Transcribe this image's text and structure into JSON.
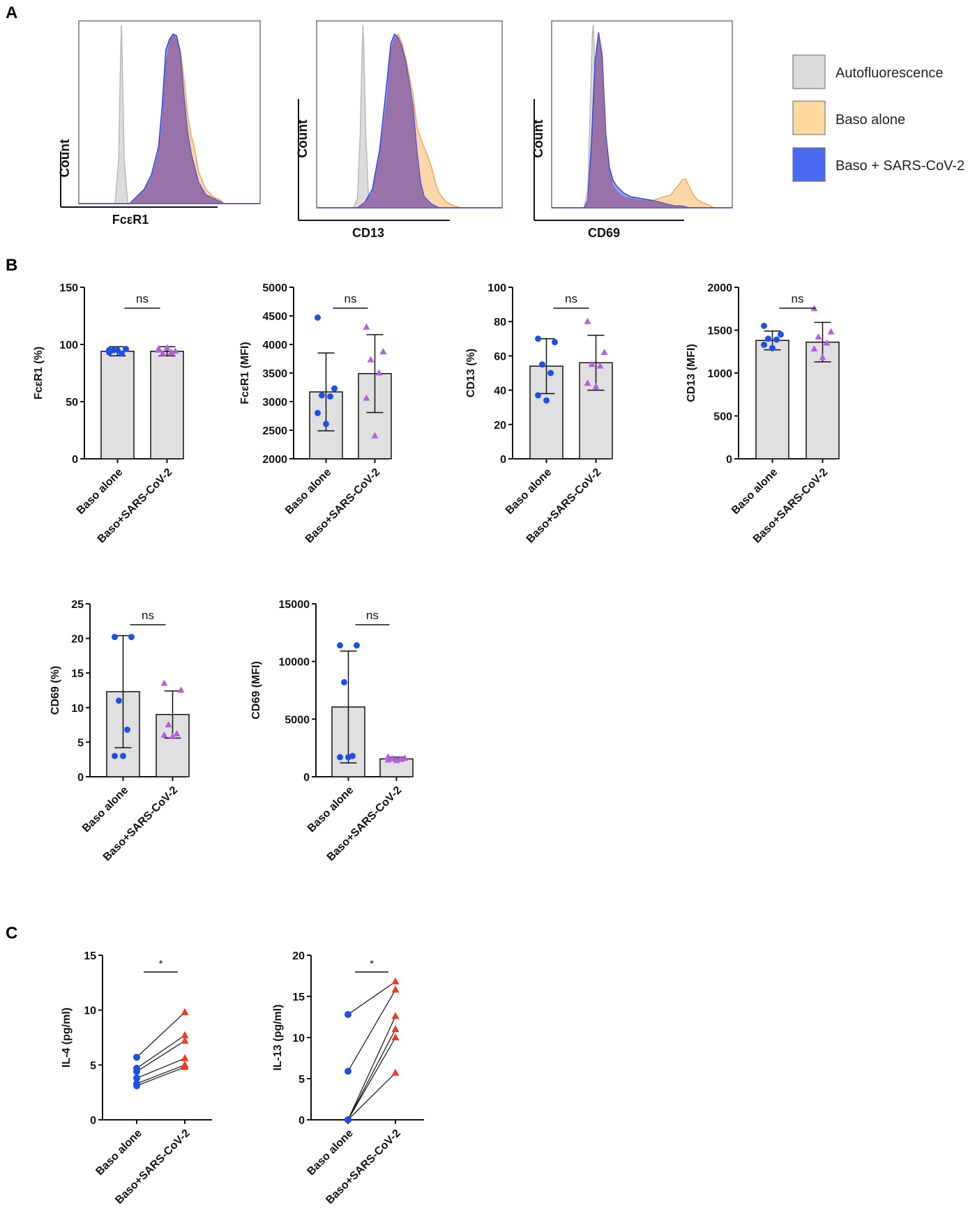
{
  "panel_labels": {
    "a": "A",
    "b": "B",
    "c": "C"
  },
  "legend": {
    "items": [
      {
        "label": "Autofluorescence",
        "color": "#dcdcdc"
      },
      {
        "label": "Baso alone",
        "color": "#fdd9a0"
      },
      {
        "label": "Baso + SARS-CoV-2",
        "color": "#4a6af2"
      }
    ]
  },
  "colors": {
    "auto_fill": "#dcdcdc",
    "auto_stroke": "#b8b8b8",
    "baso_fill": "#fbd09a",
    "baso_stroke": "#f5a45a",
    "sars_fill": "#4a66f0",
    "sars_stroke": "#2c46e0",
    "overlap_fill": "#9a6a9e",
    "bar_fill": "#e0e0e0",
    "dot_blue": "#1f4fe8",
    "tri_purple": "#b45ee0",
    "tri_red": "#f03a1e"
  },
  "chart_data": [
    {
      "id": "hist-fceri",
      "type": "area",
      "title": "",
      "xlabel": "FcεR1",
      "ylabel": "Count",
      "series": [
        {
          "name": "Autofluorescence",
          "x": [
            0.0,
            0.15,
            0.2,
            0.22,
            0.23,
            0.235,
            0.24,
            0.25,
            0.27,
            0.3,
            1.0
          ],
          "y": [
            0,
            0,
            0,
            0.25,
            0.8,
            1.0,
            0.8,
            0.25,
            0,
            0,
            0
          ]
        },
        {
          "name": "Baso alone",
          "x": [
            0.0,
            0.28,
            0.32,
            0.36,
            0.4,
            0.44,
            0.46,
            0.48,
            0.5,
            0.52,
            0.54,
            0.56,
            0.58,
            0.6,
            0.62,
            0.64,
            0.66,
            0.7,
            0.74,
            0.78,
            0.8,
            1.0
          ],
          "y": [
            0,
            0,
            0.04,
            0.07,
            0.14,
            0.28,
            0.45,
            0.78,
            0.9,
            0.95,
            0.92,
            0.86,
            0.7,
            0.5,
            0.38,
            0.3,
            0.18,
            0.08,
            0.04,
            0.02,
            0,
            0
          ]
        },
        {
          "name": "Baso + SARS-CoV-2",
          "x": [
            0.0,
            0.28,
            0.32,
            0.36,
            0.4,
            0.44,
            0.46,
            0.48,
            0.5,
            0.52,
            0.54,
            0.56,
            0.58,
            0.6,
            0.62,
            0.64,
            0.66,
            0.7,
            0.74,
            0.78,
            0.8,
            1.0
          ],
          "y": [
            0,
            0,
            0.04,
            0.08,
            0.16,
            0.32,
            0.55,
            0.86,
            0.92,
            0.95,
            0.94,
            0.84,
            0.6,
            0.4,
            0.28,
            0.2,
            0.12,
            0.05,
            0.03,
            0.01,
            0,
            0
          ]
        }
      ]
    },
    {
      "id": "hist-cd13",
      "type": "area",
      "title": "",
      "xlabel": "CD13",
      "ylabel": "Count",
      "series": [
        {
          "name": "Autofluorescence",
          "x": [
            0.0,
            0.2,
            0.22,
            0.235,
            0.245,
            0.25,
            0.255,
            0.265,
            0.28,
            0.3,
            1.0
          ],
          "y": [
            0,
            0,
            0.05,
            0.4,
            0.85,
            1.0,
            0.85,
            0.4,
            0.05,
            0,
            0
          ]
        },
        {
          "name": "Baso alone",
          "x": [
            0.0,
            0.22,
            0.26,
            0.3,
            0.34,
            0.38,
            0.4,
            0.42,
            0.44,
            0.46,
            0.48,
            0.5,
            0.52,
            0.54,
            0.56,
            0.58,
            0.6,
            0.62,
            0.64,
            0.66,
            0.7,
            0.74,
            0.78,
            1.0
          ],
          "y": [
            0,
            0,
            0.03,
            0.08,
            0.28,
            0.6,
            0.86,
            0.93,
            0.95,
            0.9,
            0.82,
            0.72,
            0.62,
            0.45,
            0.38,
            0.33,
            0.28,
            0.22,
            0.14,
            0.08,
            0.03,
            0.01,
            0,
            0
          ]
        },
        {
          "name": "Baso + SARS-CoV-2",
          "x": [
            0.0,
            0.22,
            0.26,
            0.3,
            0.34,
            0.38,
            0.4,
            0.42,
            0.44,
            0.46,
            0.48,
            0.5,
            0.52,
            0.54,
            0.56,
            0.58,
            0.6,
            0.62,
            0.64,
            0.66,
            0.7,
            0.74,
            1.0
          ],
          "y": [
            0,
            0,
            0.03,
            0.1,
            0.32,
            0.7,
            0.9,
            0.95,
            0.93,
            0.88,
            0.8,
            0.68,
            0.55,
            0.32,
            0.14,
            0.06,
            0.04,
            0.02,
            0.01,
            0,
            0,
            0,
            0
          ]
        }
      ]
    },
    {
      "id": "hist-cd69",
      "type": "area",
      "title": "",
      "xlabel": "CD69",
      "ylabel": "Count",
      "series": [
        {
          "name": "Autofluorescence",
          "x": [
            0.0,
            0.18,
            0.2,
            0.215,
            0.225,
            0.23,
            0.235,
            0.245,
            0.26,
            0.28,
            1.0
          ],
          "y": [
            0,
            0,
            0.1,
            0.6,
            0.95,
            1.0,
            0.9,
            0.4,
            0.05,
            0,
            0
          ]
        },
        {
          "name": "Baso alone",
          "x": [
            0.0,
            0.18,
            0.2,
            0.22,
            0.24,
            0.26,
            0.28,
            0.3,
            0.32,
            0.34,
            0.36,
            0.4,
            0.44,
            0.5,
            0.56,
            0.62,
            0.66,
            0.68,
            0.7,
            0.72,
            0.74,
            0.76,
            0.78,
            0.8,
            0.83,
            0.86,
            0.88,
            0.9,
            1.0
          ],
          "y": [
            0,
            0,
            0.04,
            0.3,
            0.7,
            0.95,
            0.85,
            0.4,
            0.2,
            0.12,
            0.09,
            0.06,
            0.05,
            0.04,
            0.04,
            0.06,
            0.07,
            0.1,
            0.12,
            0.15,
            0.16,
            0.12,
            0.08,
            0.05,
            0.03,
            0.02,
            0.01,
            0,
            0
          ]
        },
        {
          "name": "Baso + SARS-CoV-2",
          "x": [
            0.0,
            0.18,
            0.2,
            0.22,
            0.24,
            0.26,
            0.28,
            0.3,
            0.32,
            0.34,
            0.36,
            0.4,
            0.44,
            0.5,
            0.56,
            0.6,
            0.64,
            0.68,
            0.72,
            0.76,
            1.0
          ],
          "y": [
            0,
            0,
            0.04,
            0.35,
            0.8,
            0.96,
            0.82,
            0.4,
            0.22,
            0.15,
            0.12,
            0.08,
            0.06,
            0.05,
            0.04,
            0.03,
            0.02,
            0.01,
            0.01,
            0,
            0
          ]
        }
      ]
    },
    {
      "id": "bar-fceri-pct",
      "type": "bar",
      "title": "",
      "ylabel": "FcεR1 (%)",
      "categories": [
        "Baso alone",
        "Baso+SARS-CoV-2"
      ],
      "ylim": [
        0,
        150
      ],
      "yticks": [
        0,
        50,
        100,
        150
      ],
      "means": [
        94,
        94
      ],
      "sd": [
        4,
        4
      ],
      "points": [
        [
          95,
          96,
          95,
          92,
          93,
          95
        ],
        [
          96,
          94,
          92,
          93,
          95,
          97
        ]
      ],
      "significance": "ns"
    },
    {
      "id": "bar-fceri-mfi",
      "type": "bar",
      "title": "",
      "ylabel": "FcεR1 (MFI)",
      "categories": [
        "Baso alone",
        "Baso+SARS-CoV-2"
      ],
      "ylim": [
        2000,
        5000
      ],
      "yticks": [
        2000,
        2500,
        3000,
        3500,
        4000,
        4500,
        5000
      ],
      "means": [
        3170,
        3490
      ],
      "sd": [
        680,
        680
      ],
      "points": [
        [
          4470,
          3230,
          3110,
          3090,
          2800,
          2610
        ],
        [
          4300,
          3870,
          3730,
          3500,
          3060,
          2400
        ]
      ],
      "significance": "ns"
    },
    {
      "id": "bar-cd13-pct",
      "type": "bar",
      "title": "",
      "ylabel": "CD13 (%)",
      "categories": [
        "Baso alone",
        "Baso+SARS-CoV-2"
      ],
      "ylim": [
        0,
        100
      ],
      "yticks": [
        0,
        20,
        40,
        60,
        80,
        100
      ],
      "means": [
        54,
        56
      ],
      "sd": [
        16,
        16
      ],
      "points": [
        [
          70,
          68,
          55,
          50,
          37,
          34
        ],
        [
          80,
          62,
          55,
          54,
          44,
          42
        ]
      ],
      "significance": "ns"
    },
    {
      "id": "bar-cd13-mfi",
      "type": "bar",
      "title": "",
      "ylabel": "CD13 (MFI)",
      "categories": [
        "Baso alone",
        "Baso+SARS-CoV-2"
      ],
      "ylim": [
        0,
        2000
      ],
      "yticks": [
        0,
        500,
        1000,
        1500,
        2000
      ],
      "means": [
        1380,
        1360
      ],
      "sd": [
        110,
        230
      ],
      "points": [
        [
          1550,
          1450,
          1400,
          1390,
          1330,
          1290
        ],
        [
          1750,
          1480,
          1420,
          1350,
          1280,
          1180
        ]
      ],
      "significance": "ns"
    },
    {
      "id": "bar-cd69-pct",
      "type": "bar",
      "title": "",
      "ylabel": "CD69 (%)",
      "categories": [
        "Baso alone",
        "Baso+SARS-CoV-2"
      ],
      "ylim": [
        0,
        25
      ],
      "yticks": [
        0,
        5,
        10,
        15,
        20,
        25
      ],
      "means": [
        12.3,
        9.0
      ],
      "sd": [
        8.1,
        3.4
      ],
      "points": [
        [
          20.2,
          20.2,
          11.0,
          6.8,
          3.0,
          3.0
        ],
        [
          13.5,
          12.5,
          7.5,
          6.2,
          6.0,
          5.8
        ]
      ],
      "significance": "ns"
    },
    {
      "id": "bar-cd69-mfi",
      "type": "bar",
      "title": "",
      "ylabel": "CD69 (MFI)",
      "categories": [
        "Baso alone",
        "Baso+SARS-CoV-2"
      ],
      "ylim": [
        0,
        15000
      ],
      "yticks": [
        0,
        5000,
        10000,
        15000
      ],
      "means": [
        6050,
        1550
      ],
      "sd": [
        4850,
        150
      ],
      "points": [
        [
          11400,
          11400,
          8200,
          1800,
          1700,
          1700
        ],
        [
          1700,
          1600,
          1550,
          1500,
          1450,
          1400
        ]
      ],
      "significance": "ns"
    },
    {
      "id": "paired-il4",
      "type": "line",
      "title": "",
      "ylabel": "IL-4 (pg/ml)",
      "categories": [
        "Baso alone",
        "Baso+SARS-CoV-2"
      ],
      "ylim": [
        0,
        15
      ],
      "yticks": [
        0,
        5,
        10,
        15
      ],
      "pairs": [
        [
          5.7,
          9.8
        ],
        [
          4.7,
          7.7
        ],
        [
          4.4,
          7.2
        ],
        [
          3.8,
          5.6
        ],
        [
          3.3,
          5.0
        ],
        [
          3.1,
          4.8
        ]
      ],
      "significance": "*"
    },
    {
      "id": "paired-il13",
      "type": "line",
      "title": "",
      "ylabel": "IL-13 (pg/ml)",
      "categories": [
        "Baso alone",
        "Baso+SARS-CoV-2"
      ],
      "ylim": [
        0,
        20
      ],
      "yticks": [
        0,
        5,
        10,
        15,
        20
      ],
      "pairs": [
        [
          12.8,
          16.8
        ],
        [
          5.9,
          15.8
        ],
        [
          0,
          12.6
        ],
        [
          0,
          11.0
        ],
        [
          0,
          10.0
        ],
        [
          0,
          5.7
        ]
      ],
      "significance": "*"
    }
  ]
}
